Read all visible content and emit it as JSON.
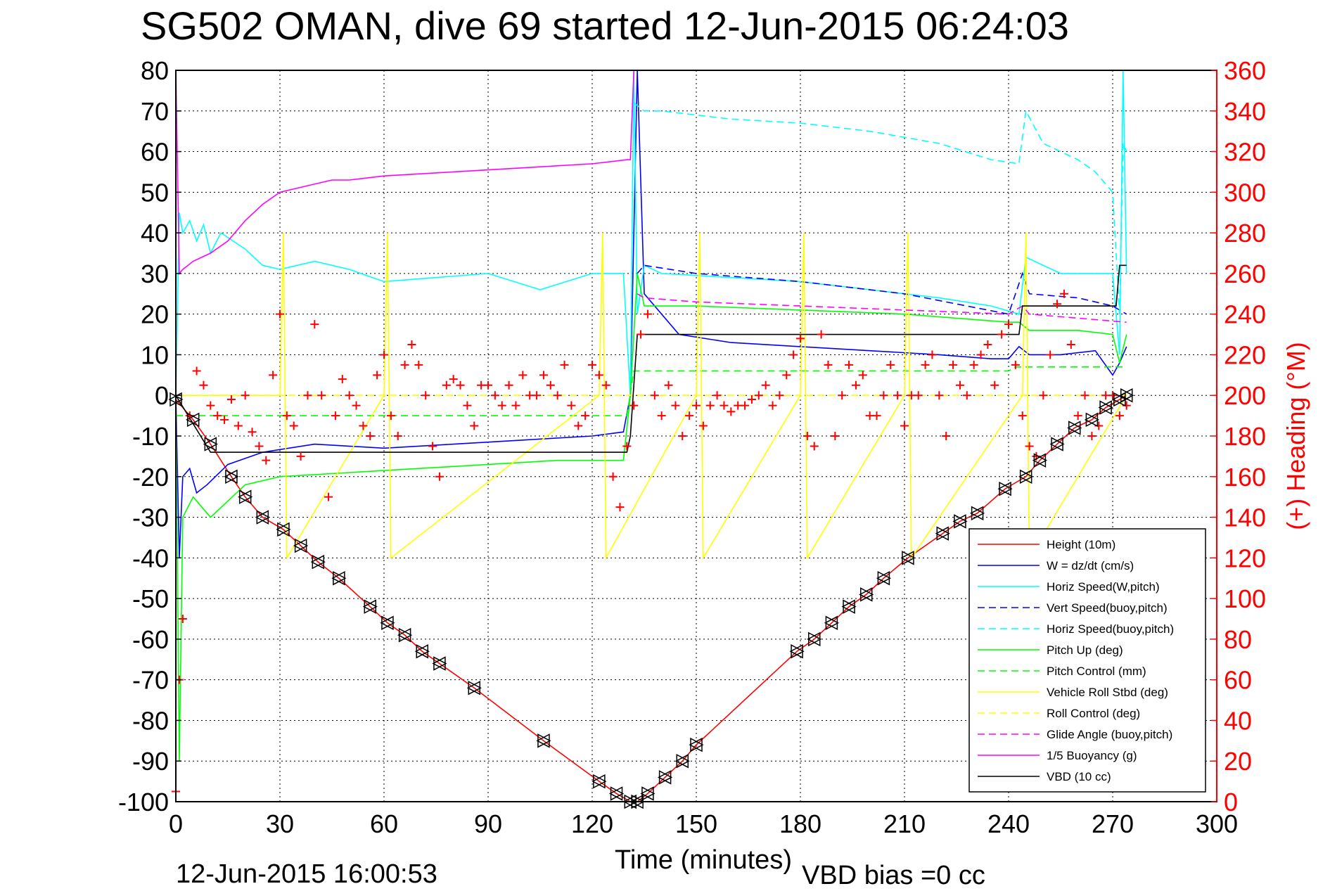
{
  "title": "SG502 OMAN, dive 69 started 12-Jun-2015 06:24:03",
  "footer_date": "12-Jun-2015 16:00:53",
  "footer_bias": "VBD bias =0 cc",
  "chart_data": {
    "type": "line",
    "title": "SG502 OMAN, dive 69 started 12-Jun-2015 06:24:03",
    "xlabel": "Time (minutes)",
    "ylabel_left": "",
    "ylabel_right": "(+) Heading (°M)",
    "xlim": [
      0,
      300
    ],
    "ylim": [
      -100,
      80
    ],
    "ylim_right": [
      0,
      360
    ],
    "xticks": [
      "0",
      "30",
      "60",
      "90",
      "120",
      "150",
      "180",
      "210",
      "240",
      "270",
      "300"
    ],
    "yticks": [
      "80",
      "70",
      "60",
      "50",
      "40",
      "30",
      "20",
      "10",
      "0",
      "-10",
      "-20",
      "-30",
      "-40",
      "-50",
      "-60",
      "-70",
      "-80",
      "-90",
      "-100"
    ],
    "yticks_right": [
      "360",
      "340",
      "320",
      "300",
      "280",
      "260",
      "240",
      "220",
      "200",
      "180",
      "160",
      "140",
      "120",
      "100",
      "80",
      "60",
      "40",
      "20",
      "0"
    ],
    "grid": true,
    "legend_position": "bottom-right",
    "colors": {
      "red": "#ff0000",
      "blue": "#0000ff",
      "cyan": "#00ffff",
      "green": "#00ff00",
      "yellow": "#ffff00",
      "magenta": "#ff00ff",
      "black": "#000000"
    },
    "series": [
      {
        "name": "Height (10m)",
        "color": "#ff0000",
        "style": "solid",
        "x": [
          0,
          5,
          10,
          16,
          20,
          25,
          31,
          36,
          41,
          47,
          56,
          61,
          66,
          71,
          76,
          86,
          106,
          122,
          127,
          131,
          133,
          136,
          141,
          146,
          150,
          179,
          184,
          189,
          194,
          199,
          204,
          211,
          221,
          226,
          231,
          239,
          245,
          249,
          254,
          259,
          264,
          268,
          272,
          274
        ],
        "y": [
          -1,
          -6,
          -12,
          -20,
          -25,
          -30,
          -33,
          -37,
          -41,
          -45,
          -52,
          -56,
          -59,
          -63,
          -66,
          -72,
          -85,
          -95,
          -98,
          -100,
          -100,
          -98,
          -94,
          -90,
          -86,
          -63,
          -60,
          -56,
          -52,
          -49,
          -45,
          -40,
          -34,
          -31,
          -29,
          -23,
          -20,
          -16,
          -12,
          -8,
          -6,
          -3,
          -1,
          0
        ]
      },
      {
        "name": "W = dz/dt (cm/s)",
        "color": "#0000ff",
        "style": "solid",
        "x": [
          0,
          1,
          2,
          4,
          6,
          9,
          15,
          25,
          40,
          60,
          80,
          100,
          120,
          129,
          131,
          133,
          135,
          145,
          160,
          180,
          200,
          220,
          235,
          240,
          243,
          246,
          255,
          265,
          270,
          272,
          274
        ],
        "y": [
          0,
          -40,
          -20,
          -18,
          -24,
          -22,
          -17,
          -14,
          -12,
          -13,
          -12,
          -11,
          -10,
          -9,
          0,
          80,
          25,
          15,
          13,
          12,
          11,
          10,
          9,
          9,
          12,
          10,
          10,
          11,
          5,
          8,
          12
        ]
      },
      {
        "name": "Horiz Speed(W,pitch)",
        "color": "#00ffff",
        "style": "solid",
        "x": [
          0,
          1,
          2,
          4,
          6,
          8,
          10,
          13,
          20,
          25,
          30,
          40,
          50,
          60,
          75,
          90,
          105,
          120,
          129,
          131,
          132,
          133,
          135,
          140,
          160,
          180,
          200,
          220,
          235,
          243,
          245,
          255,
          265,
          270,
          272,
          273,
          274
        ],
        "y": [
          0,
          45,
          40,
          43,
          38,
          42,
          35,
          40,
          36,
          32,
          31,
          33,
          31,
          28,
          29,
          30,
          26,
          30,
          30,
          0,
          80,
          20,
          32,
          30,
          29,
          28,
          26,
          24,
          22,
          20,
          34,
          30,
          30,
          30,
          10,
          80,
          30
        ]
      },
      {
        "name": "Vert Speed(buoy,pitch)",
        "color": "#0000ff",
        "style": "dashed",
        "x": [
          133,
          135,
          150,
          180,
          210,
          240,
          244,
          246,
          260,
          270,
          274
        ],
        "y": [
          30,
          32,
          30,
          28,
          25,
          20,
          30,
          25,
          24,
          22,
          20
        ]
      },
      {
        "name": "Horiz Speed(buoy,pitch)",
        "color": "#00ffff",
        "style": "dashed",
        "x": [
          132,
          135,
          140,
          160,
          180,
          200,
          220,
          235,
          243,
          245,
          250,
          260,
          265,
          270,
          272,
          273,
          274
        ],
        "y": [
          72,
          70,
          70,
          68,
          67,
          65,
          62,
          58,
          57,
          70,
          62,
          58,
          55,
          50,
          20,
          62,
          60
        ]
      },
      {
        "name": "Pitch Up (deg)",
        "color": "#00ff00",
        "style": "solid",
        "x": [
          0,
          1,
          2,
          5,
          10,
          20,
          30,
          50,
          70,
          90,
          110,
          129,
          131,
          133,
          135,
          150,
          180,
          210,
          240,
          243,
          246,
          260,
          270,
          272,
          274
        ],
        "y": [
          0,
          -90,
          -30,
          -25,
          -30,
          -22,
          -20,
          -19,
          -18,
          -17,
          -16,
          -16,
          0,
          30,
          22,
          22,
          21,
          20,
          18,
          18,
          16,
          16,
          15,
          8,
          15
        ]
      },
      {
        "name": "Pitch Control (mm)",
        "color": "#00ff00",
        "style": "dashed",
        "x": [
          0,
          130,
          132,
          240,
          242,
          274
        ],
        "y": [
          -5,
          -5,
          6,
          6,
          7,
          7
        ]
      },
      {
        "name": "Vehicle Roll Stbd (deg)",
        "color": "#ffff00",
        "style": "solid",
        "x": [
          0,
          30,
          31,
          32,
          60,
          61,
          62,
          122,
          123,
          124,
          150,
          151,
          152,
          180,
          181,
          182,
          210,
          211,
          212,
          244,
          245,
          246,
          274
        ],
        "y": [
          0,
          0,
          40,
          -40,
          0,
          40,
          -40,
          0,
          40,
          -40,
          0,
          40,
          -40,
          0,
          40,
          -40,
          0,
          40,
          -40,
          0,
          40,
          -40,
          0
        ]
      },
      {
        "name": "Roll Control (deg)",
        "color": "#ffff00",
        "style": "dashed",
        "x": [
          0,
          274
        ],
        "y": [
          0,
          0
        ]
      },
      {
        "name": "Glide Angle (buoy,pitch)",
        "color": "#ff00ff",
        "style": "dashed",
        "x": [
          133,
          135,
          150,
          180,
          210,
          240,
          244,
          246,
          260,
          274
        ],
        "y": [
          25,
          24,
          23,
          22,
          21,
          20,
          22,
          20,
          19,
          18
        ]
      },
      {
        "name": "1/5 Buoyancy (g)",
        "color": "#ff00ff",
        "style": "solid",
        "x": [
          0,
          1,
          2,
          5,
          10,
          15,
          20,
          25,
          30,
          40,
          45,
          50,
          60,
          80,
          100,
          120,
          130,
          131,
          132
        ],
        "y": [
          80,
          30,
          31,
          33,
          35,
          38,
          43,
          47,
          50,
          52,
          53,
          53,
          54,
          55,
          56,
          57,
          58,
          58,
          80
        ]
      },
      {
        "name": "VBD (10 cc)",
        "color": "#000000",
        "style": "solid",
        "x": [
          0,
          10,
          11,
          130,
          131,
          133,
          134,
          243,
          244,
          246,
          271,
          272,
          273,
          274
        ],
        "y": [
          0,
          -14,
          -14,
          -14,
          -10,
          15,
          15,
          15,
          22,
          22,
          22,
          32,
          32,
          32
        ]
      }
    ],
    "heading_series": {
      "name": "(+) Heading (°M)",
      "color": "#ff0000",
      "marker": "+",
      "x": [
        0,
        1,
        2,
        4,
        6,
        8,
        10,
        12,
        14,
        16,
        18,
        20,
        22,
        24,
        26,
        28,
        30,
        32,
        34,
        36,
        38,
        40,
        42,
        44,
        46,
        48,
        50,
        52,
        54,
        56,
        58,
        60,
        62,
        64,
        66,
        68,
        70,
        72,
        74,
        76,
        78,
        80,
        82,
        84,
        86,
        88,
        90,
        92,
        94,
        96,
        98,
        100,
        102,
        104,
        106,
        108,
        110,
        112,
        114,
        116,
        118,
        120,
        122,
        124,
        126,
        128,
        130,
        132,
        134,
        136,
        138,
        140,
        142,
        144,
        146,
        148,
        150,
        152,
        154,
        156,
        158,
        160,
        162,
        164,
        166,
        168,
        170,
        172,
        174,
        176,
        178,
        180,
        182,
        184,
        186,
        188,
        190,
        192,
        194,
        196,
        198,
        200,
        202,
        204,
        206,
        208,
        210,
        212,
        214,
        216,
        218,
        220,
        222,
        224,
        226,
        228,
        230,
        232,
        234,
        236,
        238,
        240,
        242,
        244,
        246,
        248,
        250,
        252,
        254,
        256,
        258,
        260,
        262,
        264,
        266,
        268,
        270,
        272,
        274
      ],
      "y": [
        5,
        60,
        90,
        190,
        212,
        205,
        195,
        190,
        188,
        198,
        185,
        200,
        182,
        175,
        168,
        210,
        240,
        190,
        185,
        170,
        200,
        235,
        200,
        150,
        190,
        208,
        200,
        195,
        185,
        180,
        210,
        220,
        190,
        180,
        215,
        225,
        215,
        200,
        175,
        160,
        205,
        208,
        205,
        195,
        185,
        205,
        205,
        200,
        195,
        205,
        195,
        210,
        200,
        200,
        210,
        205,
        200,
        215,
        195,
        185,
        190,
        215,
        210,
        205,
        160,
        145,
        175,
        195,
        230,
        240,
        200,
        190,
        205,
        195,
        180,
        190,
        195,
        185,
        195,
        200,
        195,
        192,
        195,
        195,
        198,
        200,
        205,
        195,
        200,
        210,
        220,
        228,
        180,
        175,
        230,
        215,
        180,
        200,
        215,
        205,
        210,
        190,
        190,
        200,
        215,
        200,
        185,
        200,
        200,
        215,
        220,
        200,
        180,
        215,
        205,
        200,
        215,
        220,
        225,
        205,
        230,
        235,
        215,
        190,
        175,
        170,
        200,
        220,
        245,
        250,
        225,
        190,
        200,
        180,
        185,
        200,
        200,
        190,
        195
      ]
    },
    "dive_markers": {
      "marker": "triangle",
      "x": [
        0,
        5,
        10,
        16,
        20,
        25,
        31,
        36,
        41,
        47,
        56,
        61,
        66,
        71,
        76,
        86,
        106,
        122,
        127,
        131,
        133,
        136,
        141,
        146,
        150,
        179,
        184,
        189,
        194,
        199,
        204,
        211,
        221,
        226,
        231,
        239,
        245,
        249,
        254,
        259,
        264,
        268,
        272,
        274
      ],
      "y": [
        -1,
        -6,
        -12,
        -20,
        -25,
        -30,
        -33,
        -37,
        -41,
        -45,
        -52,
        -56,
        -59,
        -63,
        -66,
        -72,
        -85,
        -95,
        -98,
        -100,
        -100,
        -98,
        -94,
        -90,
        -86,
        -63,
        -60,
        -56,
        -52,
        -49,
        -45,
        -40,
        -34,
        -31,
        -29,
        -23,
        -20,
        -16,
        -12,
        -8,
        -6,
        -3,
        -1,
        0
      ]
    }
  }
}
